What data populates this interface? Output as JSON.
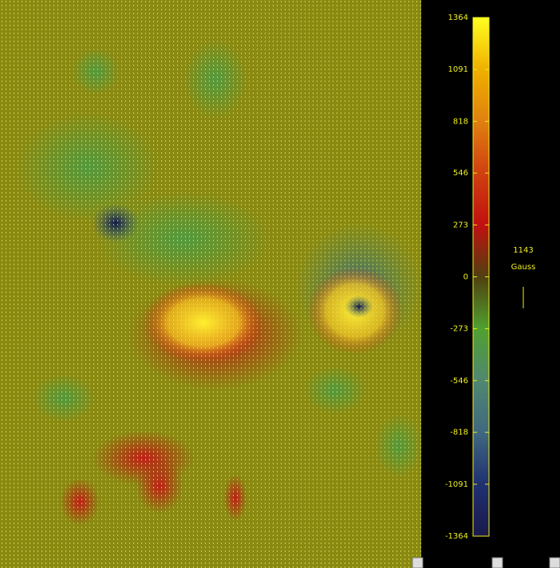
{
  "colorbar": {
    "ticks": [
      1364,
      1091,
      818,
      546,
      273,
      0,
      -273,
      -546,
      -818,
      -1091,
      -1364
    ]
  },
  "legend": {
    "value": "1143",
    "unit": "Gauss"
  }
}
